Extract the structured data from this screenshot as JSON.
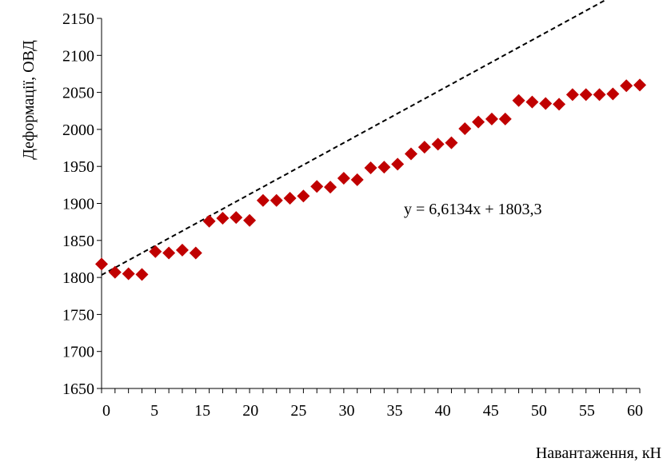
{
  "chart_data": {
    "type": "scatter",
    "xlabel": "Навантаження, кН",
    "ylabel": "Деформації, ОВД",
    "xlim": [
      0,
      60
    ],
    "ylim": [
      1650,
      2150
    ],
    "x_ticks": [
      "0",
      "5",
      "15",
      "20",
      "25",
      "30",
      "35",
      "40",
      "45",
      "50",
      "55",
      "60"
    ],
    "y_ticks": [
      "1650",
      "1700",
      "1750",
      "1800",
      "1850",
      "1900",
      "1950",
      "2000",
      "2050",
      "2100",
      "2150"
    ],
    "grid": false,
    "marker_color": "#c00000",
    "trendline": {
      "type": "linear",
      "slope": 6.6134,
      "intercept": 1803.3,
      "equation": "y = 6,6134x + 1803,3",
      "color": "#000000",
      "style": "dashed"
    },
    "series": [
      {
        "x": [
          0,
          1.5,
          3,
          4.5,
          6,
          7.5,
          9,
          10.5,
          12,
          13.5,
          15,
          16.5,
          18,
          19.5,
          21,
          22.5,
          24,
          25.5,
          27,
          28.5,
          30,
          31.5,
          33,
          34.5,
          36,
          37.5,
          39,
          40.5,
          42,
          43.5,
          45,
          46.5,
          48,
          49.5,
          51,
          52.5,
          54,
          55.5,
          57,
          58.5,
          60
        ],
        "y": [
          1818,
          1807,
          1805,
          1804,
          1835,
          1833,
          1837,
          1833,
          1876,
          1880,
          1881,
          1877,
          1904,
          1904,
          1907,
          1910,
          1923,
          1922,
          1934,
          1932,
          1948,
          1949,
          1953,
          1967,
          1976,
          1980,
          1982,
          2001,
          2010,
          2014,
          2014,
          2039,
          2037,
          2035,
          2034,
          2047,
          2047,
          2047,
          2048,
          2059,
          2060
        ]
      }
    ]
  }
}
